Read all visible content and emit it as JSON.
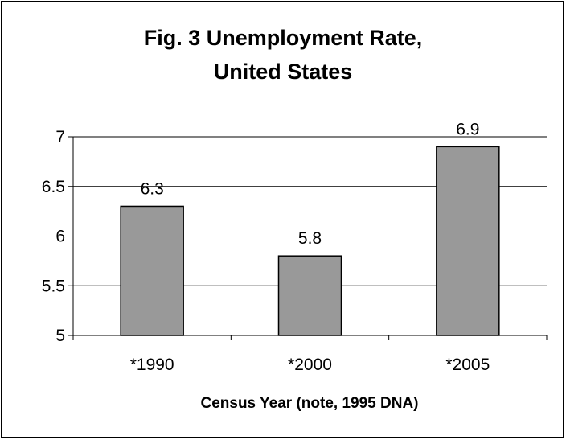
{
  "chart_data": {
    "type": "bar",
    "title": "Fig. 3 Unemployment Rate, United States",
    "title_lines": [
      "Fig. 3 Unemployment Rate,",
      "United States"
    ],
    "xlabel": "Census Year (note, 1995 DNA)",
    "ylabel": "",
    "categories": [
      "*1990",
      "*2000",
      "*2005"
    ],
    "values": [
      6.3,
      5.8,
      6.9
    ],
    "data_labels": [
      "6.3",
      "5.8",
      "6.9"
    ],
    "ylim": [
      5,
      7
    ],
    "yticks": [
      5,
      5.5,
      6,
      6.5,
      7
    ],
    "ytick_labels": [
      "5",
      "5.5",
      "6",
      "6.5",
      "7"
    ],
    "grid": true,
    "legend": "none",
    "colors": {
      "bar": "#999999",
      "bar_edge": "#000000",
      "grid": "#000000",
      "background": "#ffffff"
    }
  }
}
